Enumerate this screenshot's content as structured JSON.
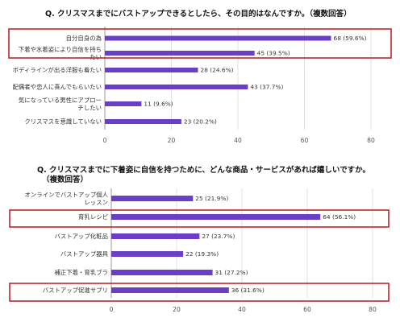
{
  "chart_data": [
    {
      "type": "bar",
      "orientation": "horizontal",
      "title": "Q. クリスマスまでにバストアップできるとしたら、その目的はなんですか。（複数回答）",
      "categories": [
        [
          "自分自身の為"
        ],
        [
          "下着や水着姿により自信を持ち",
          "たい"
        ],
        [
          "ボディラインが出る洋服も着たい"
        ],
        [
          "配偶者や恋人に喜んでもらいたい"
        ],
        [
          "気になっている男性にアプロー",
          "チしたい"
        ],
        [
          "クリスマスを意識していない"
        ]
      ],
      "values": [
        68,
        45,
        28,
        43,
        11,
        23
      ],
      "data_labels": [
        "68 (59.6%)",
        "45 (39.5%)",
        "28 (24.6%)",
        "43 (37.7%)",
        "11 (9.6%)",
        "23 (20.2%)"
      ],
      "highlighted": [
        0,
        1
      ],
      "xlim": [
        0,
        80
      ],
      "xticks": [
        "0",
        "20",
        "40",
        "60",
        "80"
      ],
      "grid": true,
      "bar_color": "#6a3fc6",
      "highlight_color": "#c0262d"
    },
    {
      "type": "bar",
      "orientation": "horizontal",
      "title": [
        "Q. クリスマスまでに下着姿に自信を持つために、どんな商品・サービスがあれば嬉しいですか。",
        "（複数回答）"
      ],
      "categories": [
        [
          "オンラインでバストアップ個人",
          "レッスン"
        ],
        [
          "育乳レシピ"
        ],
        [
          "バストアップ化粧品"
        ],
        [
          "バストアップ器具"
        ],
        [
          "補正下着・育乳ブラ"
        ],
        [
          "バストアップ促進サプリ"
        ]
      ],
      "values": [
        25,
        64,
        27,
        22,
        31,
        36
      ],
      "data_labels": [
        "25 (21.9%)",
        "64 (56.1%)",
        "27 (23.7%)",
        "22 (19.3%)",
        "31 (27.2%)",
        "36 (31.6%)"
      ],
      "highlighted": [
        1,
        5
      ],
      "xlim": [
        0,
        80
      ],
      "xticks": [
        "0",
        "20",
        "40",
        "60",
        "80"
      ],
      "grid": true,
      "bar_color": "#6a3fc6",
      "highlight_color": "#c0262d"
    }
  ]
}
